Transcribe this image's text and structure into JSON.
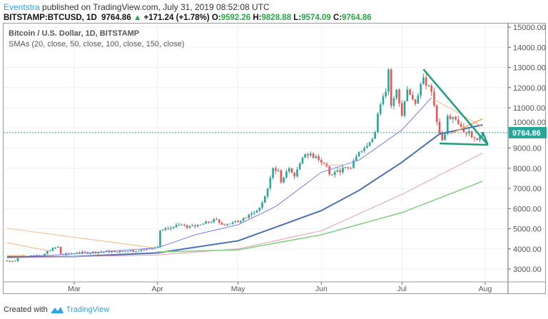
{
  "header": {
    "author": "Eventstra",
    "published": "published on TradingView.com, July 31, 2019 08:52:08 UTC",
    "symbol": "BITSTAMP:BTCUSD, 1D",
    "last": "9764.86",
    "change": "+171.24 (+1.78%)",
    "o_label": "O:",
    "o": "9592.26",
    "h_label": "H:",
    "h": "9828.88",
    "l_label": "L:",
    "l": "9574.09",
    "c_label": "C:",
    "c": "9764.86"
  },
  "legend": {
    "title": "Bitcoin / U.S. Dollar, 1D, BITSTAMP",
    "indicators": "SMAs (20, close, 50, close, 100, close, 150, close)"
  },
  "footer": {
    "created_with": "Created with",
    "brand": "TradingView"
  },
  "chart_data": {
    "type": "candlestick",
    "year": 2019,
    "ylim": [
      2500,
      15200
    ],
    "y_ticks": [
      "15000.00",
      "14000.00",
      "13000.00",
      "12000.00",
      "11000.00",
      "10000.00",
      "9000.00",
      "8000.00",
      "7000.00",
      "6000.00",
      "5000.00",
      "4000.00",
      "3000.00"
    ],
    "x_ticks": [
      {
        "label": "Mar",
        "date": "03-01"
      },
      {
        "label": "Apr",
        "date": "04-01"
      },
      {
        "label": "May",
        "date": "05-01"
      },
      {
        "label": "Jun",
        "date": "06-01"
      },
      {
        "label": "Jul",
        "date": "07-01"
      },
      {
        "label": "Aug",
        "date": "08-01"
      }
    ],
    "grid": true,
    "last_price": 9764.86,
    "last_price_label": "9764.86",
    "colors": {
      "up": "#26a69a",
      "down": "#ef5350",
      "last": "#26a69a",
      "trend": "#1e9e7e"
    },
    "closes": [
      [
        "02-04",
        3420
      ],
      [
        "02-07",
        3400
      ],
      [
        "02-08",
        3650
      ],
      [
        "02-12",
        3620
      ],
      [
        "02-17",
        3650
      ],
      [
        "02-19",
        3900
      ],
      [
        "02-23",
        4100
      ],
      [
        "02-24",
        3750
      ],
      [
        "03-03",
        3800
      ],
      [
        "03-15",
        3880
      ],
      [
        "03-25",
        3900
      ],
      [
        "03-31",
        4100
      ],
      [
        "04-01",
        4120
      ],
      [
        "04-02",
        4900
      ],
      [
        "04-05",
        5000
      ],
      [
        "04-09",
        5200
      ],
      [
        "04-12",
        5050
      ],
      [
        "04-17",
        5200
      ],
      [
        "04-23",
        5450
      ],
      [
        "04-25",
        5200
      ],
      [
        "04-28",
        5250
      ],
      [
        "05-02",
        5400
      ],
      [
        "05-08",
        5900
      ],
      [
        "05-10",
        6300
      ],
      [
        "05-12",
        7000
      ],
      [
        "05-14",
        8000
      ],
      [
        "05-16",
        7900
      ],
      [
        "05-17",
        7300
      ],
      [
        "05-20",
        8000
      ],
      [
        "05-22",
        7600
      ],
      [
        "05-26",
        8700
      ],
      [
        "05-30",
        8600
      ],
      [
        "06-03",
        8100
      ],
      [
        "06-04",
        7700
      ],
      [
        "06-07",
        7900
      ],
      [
        "06-12",
        8000
      ],
      [
        "06-15",
        8800
      ],
      [
        "06-18",
        9100
      ],
      [
        "06-21",
        9800
      ],
      [
        "06-22",
        10700
      ],
      [
        "06-25",
        11800
      ],
      [
        "06-26",
        12900
      ],
      [
        "06-27",
        11100
      ],
      [
        "06-29",
        11900
      ],
      [
        "07-01",
        10600
      ],
      [
        "07-03",
        11900
      ],
      [
        "07-06",
        11200
      ],
      [
        "07-09",
        12500
      ],
      [
        "07-10",
        12100
      ],
      [
        "07-12",
        11800
      ],
      [
        "07-14",
        10300
      ],
      [
        "07-16",
        9400
      ],
      [
        "07-17",
        9700
      ],
      [
        "07-18",
        10600
      ],
      [
        "07-20",
        10550
      ],
      [
        "07-22",
        10200
      ],
      [
        "07-24",
        9800
      ],
      [
        "07-26",
        9850
      ],
      [
        "07-28",
        9500
      ],
      [
        "07-30",
        9590
      ],
      [
        "07-31",
        9765
      ]
    ],
    "lines": [
      {
        "color": "#7b7bf0",
        "width": 1,
        "points": [
          [
            "02-04",
            3580
          ],
          [
            "03-01",
            3750
          ],
          [
            "04-01",
            4050
          ],
          [
            "04-15",
            4700
          ],
          [
            "05-01",
            5200
          ],
          [
            "05-15",
            6100
          ],
          [
            "06-01",
            7800
          ],
          [
            "06-15",
            8400
          ],
          [
            "07-01",
            9900
          ],
          [
            "07-12",
            11500
          ]
        ]
      },
      {
        "color": "#4a6fb5",
        "width": 2,
        "points": [
          [
            "02-04",
            3600
          ],
          [
            "03-01",
            3620
          ],
          [
            "04-01",
            3800
          ],
          [
            "05-01",
            4400
          ],
          [
            "06-01",
            5900
          ],
          [
            "06-15",
            6900
          ],
          [
            "07-01",
            8300
          ],
          [
            "07-15",
            9700
          ],
          [
            "07-31",
            10150
          ]
        ]
      },
      {
        "color": "#e89aae",
        "width": 1,
        "points": [
          [
            "02-04",
            3550
          ],
          [
            "04-01",
            3700
          ],
          [
            "05-01",
            4000
          ],
          [
            "06-01",
            4900
          ],
          [
            "07-01",
            6700
          ],
          [
            "07-31",
            8750
          ]
        ]
      },
      {
        "color": "#7fcf7f",
        "width": 1.5,
        "points": [
          [
            "04-01",
            3850
          ],
          [
            "05-01",
            3950
          ],
          [
            "06-01",
            4700
          ],
          [
            "07-01",
            5800
          ],
          [
            "07-31",
            7350
          ]
        ]
      },
      {
        "color": "#f8b87a",
        "width": 1,
        "points": [
          [
            "02-04",
            5020
          ],
          [
            "04-01",
            4030
          ]
        ]
      },
      {
        "color": "#f8b87a",
        "width": 1,
        "points": [
          [
            "02-04",
            4310
          ],
          [
            "02-20",
            3885
          ]
        ]
      },
      {
        "color": "#f8b87a",
        "width": 1.5,
        "points": [
          [
            "02-04",
            3670
          ],
          [
            "02-11",
            3670
          ]
        ]
      },
      {
        "color": "#f8b87a",
        "width": 1,
        "points": [
          [
            "06-01",
            8150
          ],
          [
            "06-10",
            8170
          ]
        ]
      },
      {
        "color": "#f8b87a",
        "width": 1,
        "points": [
          [
            "07-13",
            11400
          ],
          [
            "07-20",
            10900
          ],
          [
            "07-31",
            10050
          ]
        ]
      },
      {
        "color": "#f8a85a",
        "width": 1.5,
        "points": [
          [
            "07-19",
            9700
          ],
          [
            "07-31",
            10450
          ]
        ]
      }
    ],
    "trendlines": [
      {
        "from": [
          "07-09",
          12910
        ],
        "to": [
          "08-02",
          9160
        ]
      },
      {
        "from": [
          "07-15",
          9230
        ],
        "to": [
          "08-02",
          9160
        ]
      },
      {
        "from": [
          "07-31",
          9800
        ],
        "to": [
          "08-02",
          9160
        ]
      }
    ]
  }
}
